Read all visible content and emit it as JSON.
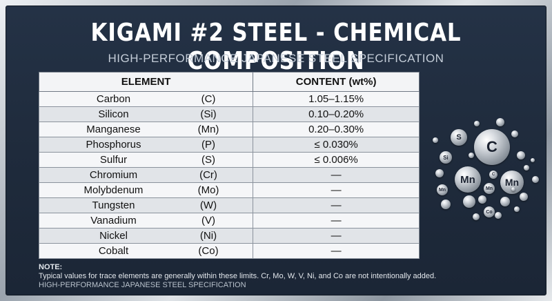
{
  "title": "KIGAMI #2 STEEL - CHEMICAL COMPOSITION",
  "subtitle": "HIGH-PERFORMANCE JAPANESE STEEL SPECIFICATION",
  "table": {
    "headers": [
      "ELEMENT",
      "CONTENT (wt%)"
    ],
    "rows": [
      {
        "name": "Carbon",
        "symbol": "(C)",
        "content": "1.05–1.15%"
      },
      {
        "name": "Silicon",
        "symbol": "(Si)",
        "content": "0.10–0.20%"
      },
      {
        "name": "Manganese",
        "symbol": "(Mn)",
        "content": "0.20–0.30%"
      },
      {
        "name": "Phosphorus",
        "symbol": "(P)",
        "content": "≤ 0.030%"
      },
      {
        "name": "Sulfur",
        "symbol": "(S)",
        "content": "≤ 0.006%"
      },
      {
        "name": "Chromium",
        "symbol": "(Cr)",
        "content": "—"
      },
      {
        "name": "Molybdenum",
        "symbol": "(Mo)",
        "content": "—"
      },
      {
        "name": "Tungsten",
        "symbol": "(W)",
        "content": "—"
      },
      {
        "name": "Vanadium",
        "symbol": "(V)",
        "content": "—"
      },
      {
        "name": "Nickel",
        "symbol": "(Ni)",
        "content": "—"
      },
      {
        "name": "Cobalt",
        "symbol": "(Co)",
        "content": "—"
      }
    ]
  },
  "note": {
    "label": "NOTE:",
    "text": "Typical values for trace elements are generally within these limits. Cr, Mo, W, V, Ni, and Co are not intentionally added.",
    "footer": "HIGH-PERFORMANCE JAPANESE STEEL SPECIFICATION"
  },
  "illustration": {
    "icon": "metal-atoms-illustration",
    "labels": [
      "C",
      "Mn",
      "Mn",
      "S",
      "Si",
      "Mn",
      "Mn",
      "Co",
      "C"
    ]
  }
}
